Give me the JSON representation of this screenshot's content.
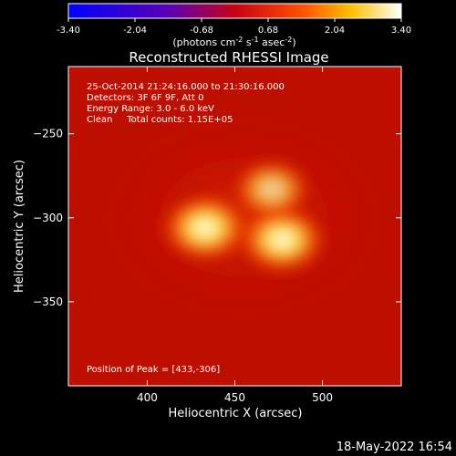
{
  "colorbar": {
    "ticks": [
      "-3.40",
      "-2.04",
      "-0.68",
      "0.68",
      "2.04",
      "3.40"
    ],
    "unit_label": "(photons cm",
    "unit_sup1": "-2",
    "unit_mid": " s",
    "unit_sup2": "-1",
    "unit_end": " asec",
    "unit_sup3": "-2",
    "unit_close": ")"
  },
  "image": {
    "title": "Reconstructed RHESSI Image",
    "info_lines": [
      "25-Oct-2014 21:24:16.000 to 21:30:16.000",
      "Detectors: 3F 6F 9F, Att 0",
      "Energy Range: 3.0 - 6.0 keV",
      "Clean     Total counts: 1.15E+05"
    ],
    "peak_text": "Position of Peak = [433,-306]"
  },
  "footer": {
    "timestamp": "18-May-2022 16:54"
  },
  "chart_data": {
    "type": "heatmap",
    "title": "Reconstructed RHESSI Image",
    "xlabel": "Heliocentric X (arcsec)",
    "ylabel": "Heliocentric Y (arcsec)",
    "xlim": [
      355,
      545
    ],
    "ylim": [
      -400,
      -210
    ],
    "x_ticks": [
      400,
      450,
      500
    ],
    "y_ticks": [
      -250,
      -300,
      -350
    ],
    "colorscale": {
      "min": -3.4,
      "max": 3.4,
      "name": "red-temperature"
    },
    "sources": [
      {
        "x": 433,
        "y": -306,
        "peak": 3.4,
        "sigma": 9
      },
      {
        "x": 477,
        "y": -313,
        "peak": 3.0,
        "sigma": 9
      },
      {
        "x": 471,
        "y": -283,
        "peak": 2.2,
        "sigma": 8
      },
      {
        "x": 455,
        "y": -300,
        "peak": 1.3,
        "sigma": 22
      }
    ],
    "background_level": 0.75,
    "peak_position": [
      433,
      -306
    ]
  }
}
